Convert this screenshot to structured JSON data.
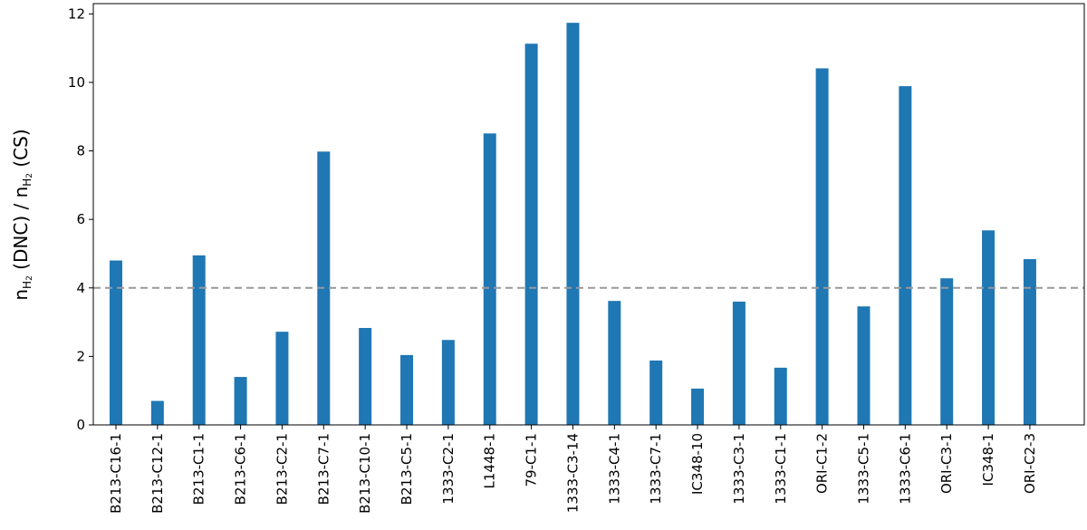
{
  "chart_data": {
    "type": "bar",
    "ylabel": [
      {
        "text": "n"
      },
      {
        "text": "H",
        "sub": 1
      },
      {
        "text": "2",
        "sub": 2
      },
      {
        "text": " (DNC) / n"
      },
      {
        "text": "H",
        "sub": 1
      },
      {
        "text": "2",
        "sub": 2
      },
      {
        "text": " (CS)"
      }
    ],
    "categories": [
      "B213-C16-1",
      "B213-C12-1",
      "B213-C1-1",
      "B213-C6-1",
      "B213-C2-1",
      "B213-C7-1",
      "B213-C10-1",
      "B213-C5-1",
      "1333-C2-1",
      "L1448-1",
      "79-C1-1",
      "1333-C3-14",
      "1333-C4-1",
      "1333-C7-1",
      "IC348-10",
      "1333-C3-1",
      "1333-C1-1",
      "ORI-C1-2",
      "1333-C5-1",
      "1333-C6-1",
      "ORI-C3-1",
      "IC348-1",
      "ORI-C2-3"
    ],
    "values": [
      4.8,
      0.7,
      4.95,
      1.4,
      2.72,
      7.98,
      2.83,
      2.04,
      2.48,
      8.51,
      11.13,
      11.74,
      3.62,
      1.88,
      1.06,
      3.6,
      1.67,
      10.41,
      3.46,
      9.89,
      4.28,
      5.68,
      4.84
    ],
    "color": "#1f77b4",
    "ylim": [
      0,
      12.3
    ],
    "yticks": [
      0,
      2,
      4,
      6,
      8,
      10,
      12
    ],
    "hline": {
      "value": 4,
      "color": "#999999",
      "style": "dashed"
    }
  }
}
